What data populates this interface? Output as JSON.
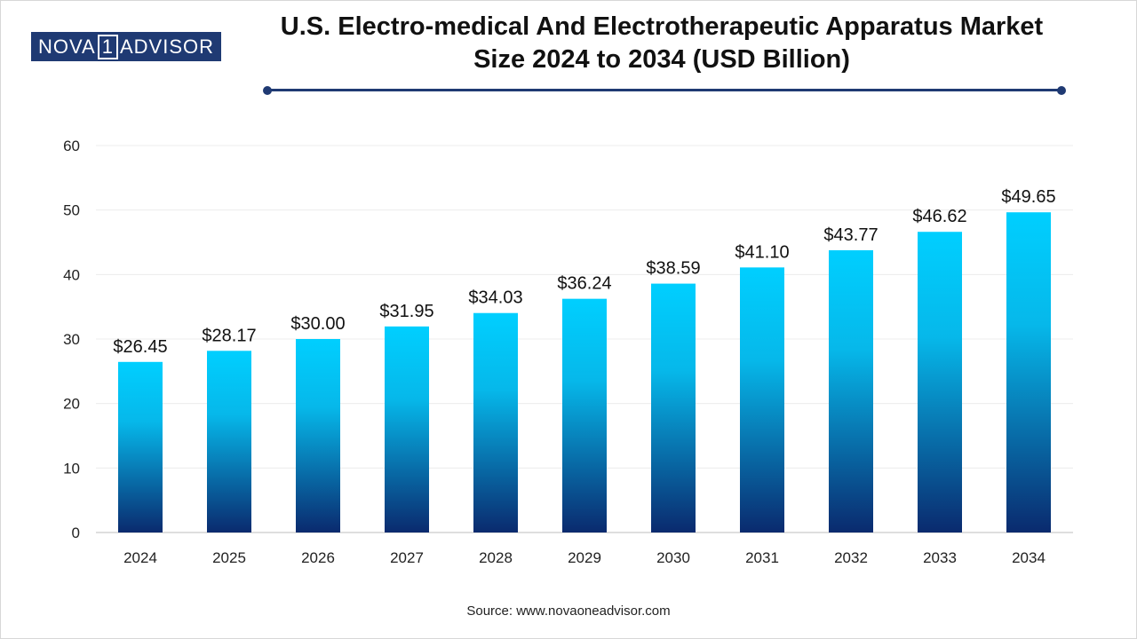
{
  "logo": {
    "left": "NOVA",
    "box": "1",
    "right": "ADVISOR"
  },
  "title_line1": "U.S. Electro-medical And Electrotherapeutic Apparatus Market",
  "title_line2": "Size 2024 to 2034 (USD Billion)",
  "source": "Source: www.novaoneadvisor.com",
  "colors": {
    "bar_top": "#00cfff",
    "bar_bottom": "#0a2a6e",
    "accent": "#1f3a73"
  },
  "chart_data": {
    "type": "bar",
    "title": "U.S. Electro-medical And Electrotherapeutic Apparatus Market Size 2024 to 2034 (USD Billion)",
    "xlabel": "",
    "ylabel": "",
    "categories": [
      "2024",
      "2025",
      "2026",
      "2027",
      "2028",
      "2029",
      "2030",
      "2031",
      "2032",
      "2033",
      "2034"
    ],
    "values": [
      26.45,
      28.17,
      30.0,
      31.95,
      34.03,
      36.24,
      38.59,
      41.1,
      43.77,
      46.62,
      49.65
    ],
    "value_labels": [
      "$26.45",
      "$28.17",
      "$30.00",
      "$31.95",
      "$34.03",
      "$36.24",
      "$38.59",
      "$41.10",
      "$43.77",
      "$46.62",
      "$49.65"
    ],
    "ylim": [
      0,
      60
    ],
    "yticks": [
      0,
      10,
      20,
      30,
      40,
      50,
      60
    ],
    "grid": true,
    "legend": "none"
  }
}
